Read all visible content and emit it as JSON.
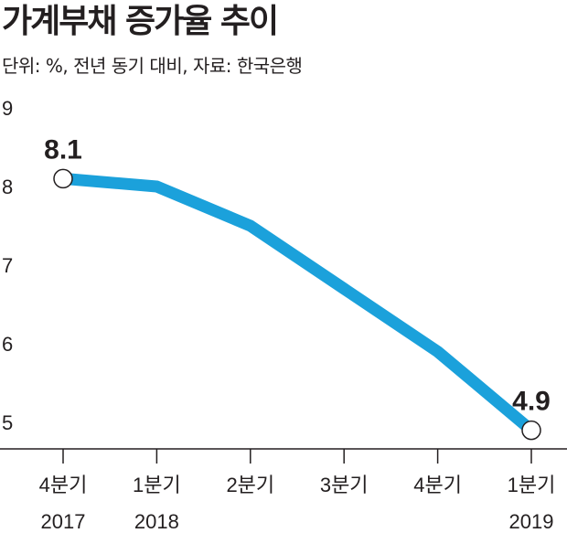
{
  "chart_data": {
    "type": "line",
    "title": "가계부채 증가율 추이",
    "subtitle": "단위: %, 전년 동기 대비, 자료: 한국은행",
    "categories": [
      [
        "4분기",
        "2017"
      ],
      [
        "1분기",
        "2018"
      ],
      [
        "2분기",
        ""
      ],
      [
        "3분기",
        ""
      ],
      [
        "4분기",
        ""
      ],
      [
        "1분기",
        "2019"
      ]
    ],
    "series": [
      {
        "values": [
          8.1,
          8.0,
          7.5,
          6.7,
          5.9,
          4.9
        ]
      }
    ],
    "data_labels": [
      {
        "index": 0,
        "text": "8.1"
      },
      {
        "index": 5,
        "text": "4.9"
      }
    ],
    "yticks": [
      5,
      6,
      7,
      8,
      9
    ],
    "ylim": [
      4.5,
      9.0
    ],
    "grid": false,
    "line_color": "#1ba1db",
    "axis_color": "#231f20"
  }
}
